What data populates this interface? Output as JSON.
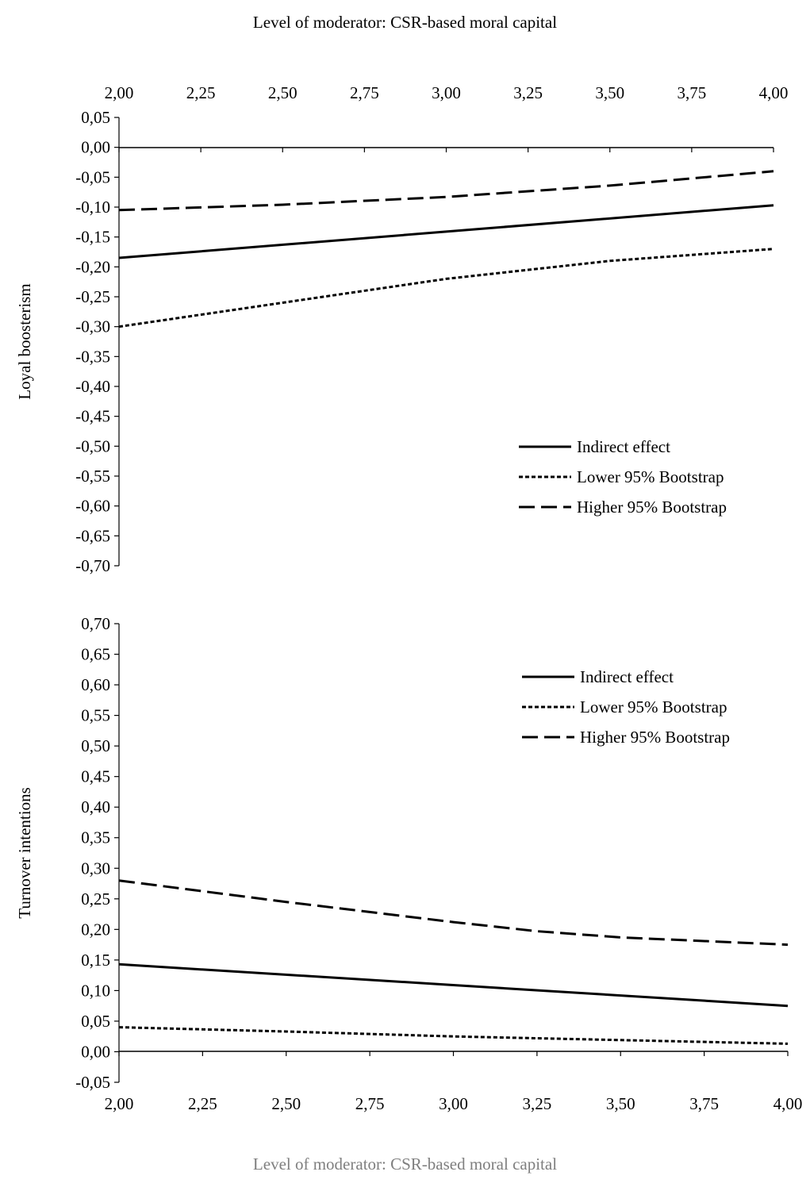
{
  "chart_data": [
    {
      "type": "line",
      "ylabel": "Loyal boosterism",
      "xlabel": "Level of moderator: CSR-based moral capital",
      "x": [
        2.0,
        4.0
      ],
      "xlim": [
        2.0,
        4.0
      ],
      "ylim": [
        -0.7,
        0.05
      ],
      "xticks": [
        "2,00",
        "2,25",
        "2,50",
        "2,75",
        "3,00",
        "3,25",
        "3,50",
        "3,75",
        "4,00"
      ],
      "yticks": [
        "0,05",
        "0,00",
        "-0,05",
        "-0,10",
        "-0,15",
        "-0,20",
        "-0,25",
        "-0,30",
        "-0,35",
        "-0,40",
        "-0,45",
        "-0,50",
        "-0,55",
        "-0,60",
        "-0,65",
        "-0,70"
      ],
      "x_axis_position": "top",
      "grid": false,
      "legend_position": "right-middle",
      "series": [
        {
          "name": "Indirect effect",
          "style": "solid",
          "points": [
            [
              2.0,
              -0.185
            ],
            [
              3.0,
              -0.141
            ],
            [
              4.0,
              -0.097
            ]
          ]
        },
        {
          "name": "Lower 95% Bootstrap",
          "style": "dotted",
          "points": [
            [
              2.0,
              -0.3
            ],
            [
              2.5,
              -0.26
            ],
            [
              3.0,
              -0.22
            ],
            [
              3.5,
              -0.19
            ],
            [
              4.0,
              -0.17
            ]
          ]
        },
        {
          "name": "Higher 95% Bootstrap",
          "style": "dashed",
          "points": [
            [
              2.0,
              -0.105
            ],
            [
              2.5,
              -0.096
            ],
            [
              3.0,
              -0.083
            ],
            [
              3.5,
              -0.064
            ],
            [
              4.0,
              -0.04
            ]
          ]
        }
      ]
    },
    {
      "type": "line",
      "ylabel": "Turnover intentions",
      "xlabel": "Level of moderator: CSR-based moral capital",
      "x": [
        2.0,
        4.0
      ],
      "xlim": [
        2.0,
        4.0
      ],
      "ylim": [
        -0.05,
        0.7
      ],
      "xticks": [
        "2,00",
        "2,25",
        "2,50",
        "2,75",
        "3,00",
        "3,25",
        "3,50",
        "3,75",
        "4,00"
      ],
      "yticks": [
        "0,70",
        "0,65",
        "0,60",
        "0,55",
        "0,50",
        "0,45",
        "0,40",
        "0,35",
        "0,30",
        "0,25",
        "0,20",
        "0,15",
        "0,10",
        "0,05",
        "0,00",
        "-0,05"
      ],
      "x_axis_position": "bottom",
      "grid": false,
      "legend_position": "top-right",
      "series": [
        {
          "name": "Indirect effect",
          "style": "solid",
          "points": [
            [
              2.0,
              0.143
            ],
            [
              3.0,
              0.109
            ],
            [
              4.0,
              0.075
            ]
          ]
        },
        {
          "name": "Lower 95% Bootstrap",
          "style": "dotted",
          "points": [
            [
              2.0,
              0.04
            ],
            [
              2.5,
              0.033
            ],
            [
              3.0,
              0.025
            ],
            [
              3.5,
              0.019
            ],
            [
              4.0,
              0.013
            ]
          ]
        },
        {
          "name": "Higher 95% Bootstrap",
          "style": "dashed",
          "points": [
            [
              2.0,
              0.28
            ],
            [
              2.5,
              0.245
            ],
            [
              3.0,
              0.212
            ],
            [
              3.25,
              0.197
            ],
            [
              3.5,
              0.187
            ],
            [
              4.0,
              0.175
            ]
          ]
        }
      ]
    }
  ],
  "captions": {
    "top": "Level of moderator: CSR-based moral capital",
    "bottom": "Level of moderator: CSR-based moral capital"
  }
}
